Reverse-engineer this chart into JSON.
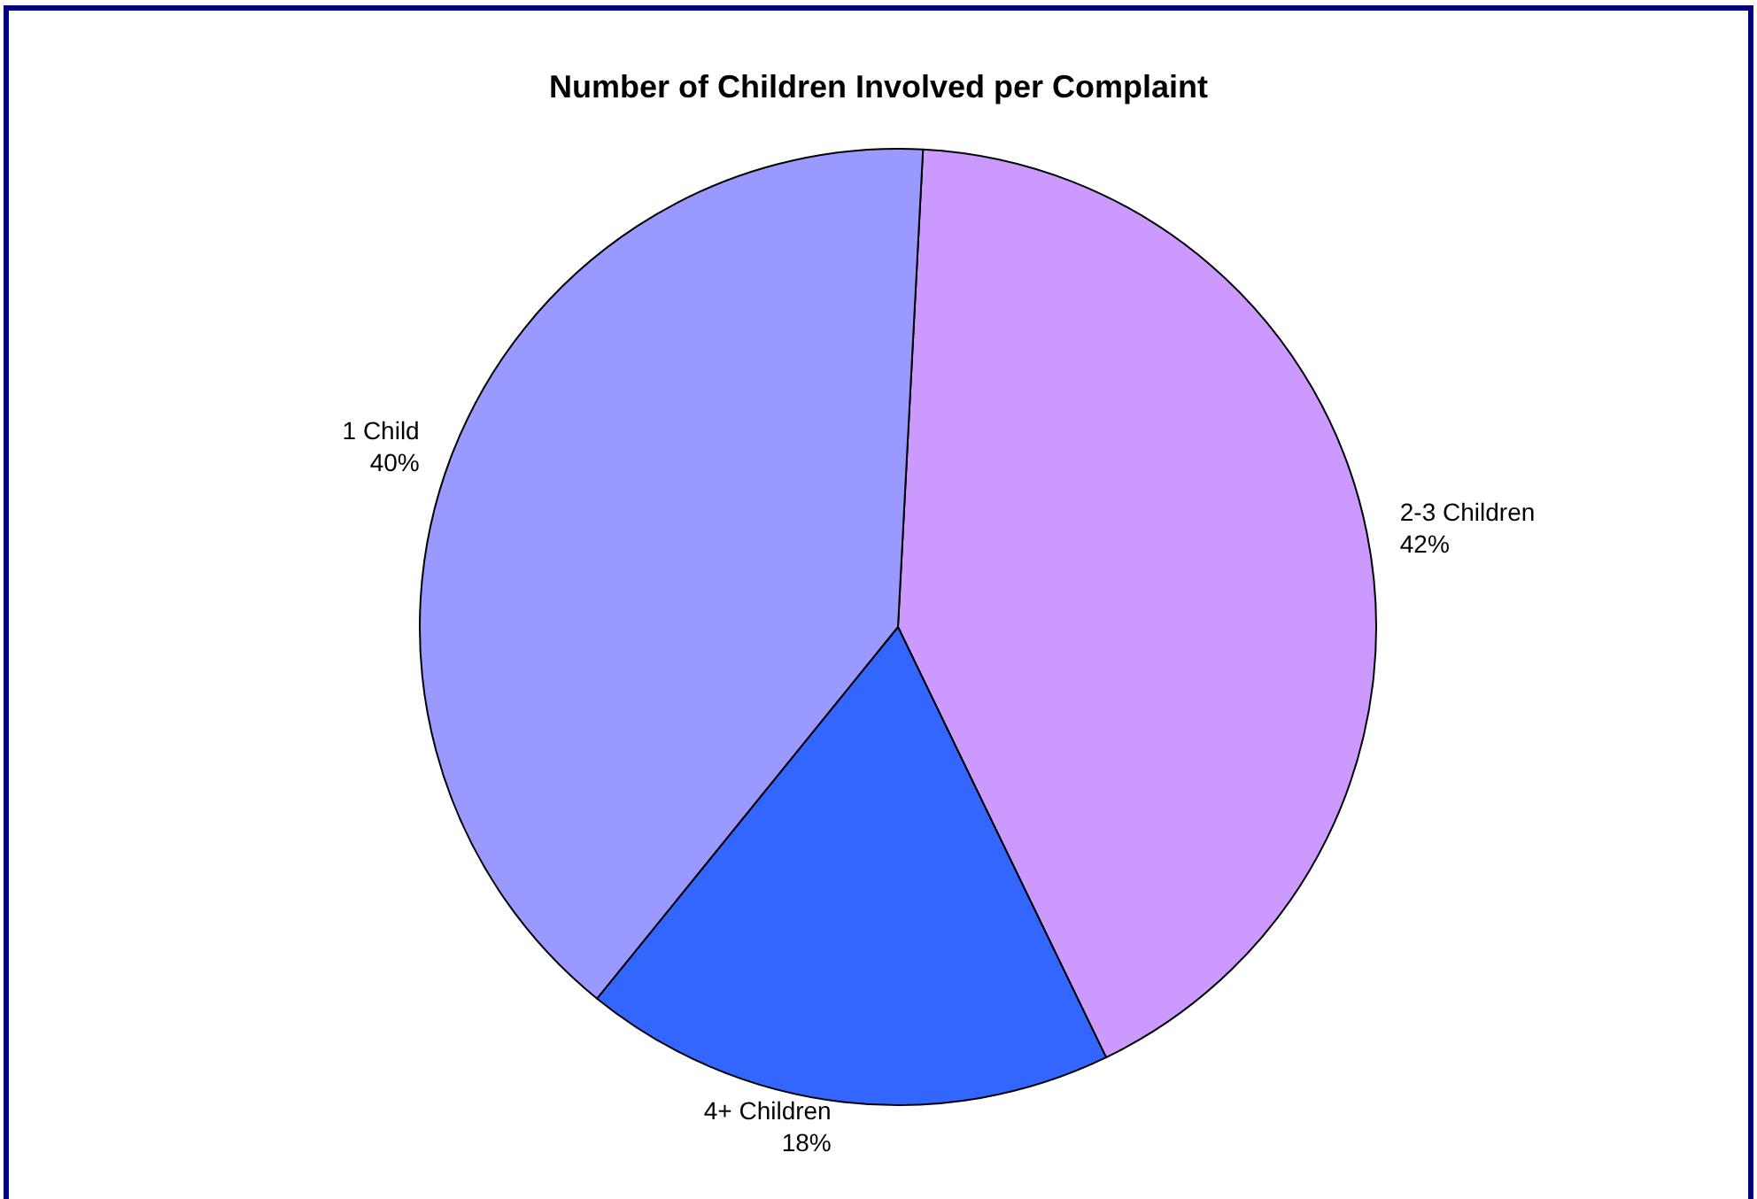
{
  "chart_data": {
    "type": "pie",
    "title": "Number of Children Involved per Complaint",
    "categories": [
      "2-3 Children",
      "4+ Children",
      "1 Child"
    ],
    "values": [
      42,
      18,
      40
    ],
    "colors": [
      "#cc99ff",
      "#3366ff",
      "#9999ff"
    ],
    "value_labels": [
      "42%",
      "18%",
      "40%"
    ],
    "legend": false
  }
}
